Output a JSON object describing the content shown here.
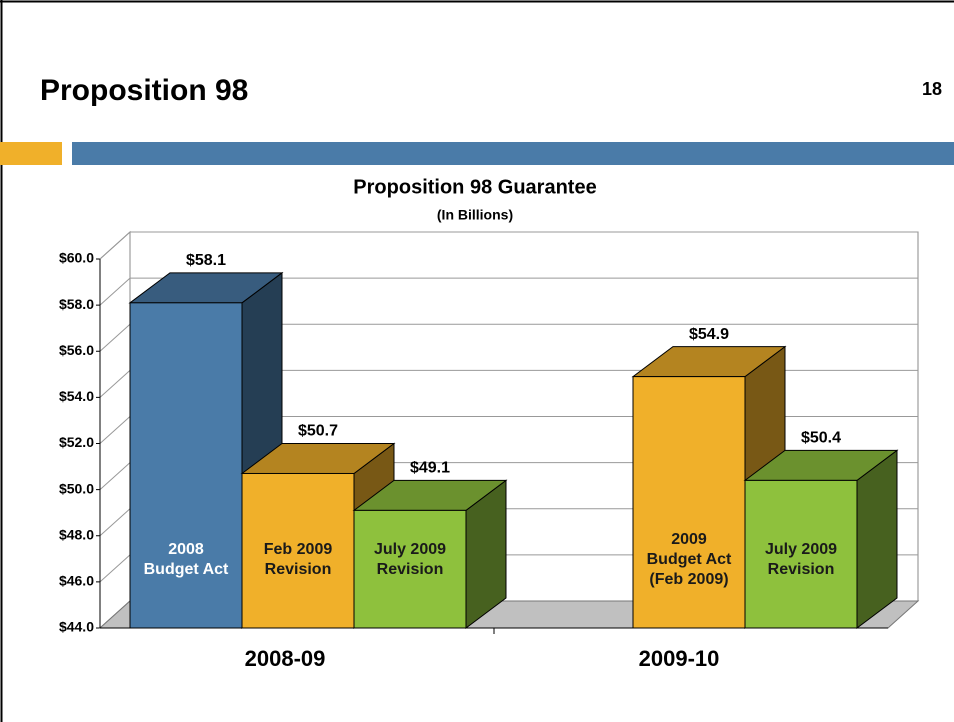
{
  "slide": {
    "title": "Proposition 98",
    "page_number": "18"
  },
  "chart_data": {
    "type": "bar3d",
    "title": "Proposition 98 Guarantee",
    "subtitle": "(In Billions)",
    "ylim": [
      44,
      60
    ],
    "yticks": [
      {
        "value": 44,
        "label": "$44.0"
      },
      {
        "value": 46,
        "label": "$46.0"
      },
      {
        "value": 48,
        "label": "$48.0"
      },
      {
        "value": 50,
        "label": "$50.0"
      },
      {
        "value": 52,
        "label": "$52.0"
      },
      {
        "value": 54,
        "label": "$54.0"
      },
      {
        "value": 56,
        "label": "$56.0"
      },
      {
        "value": 58,
        "label": "$58.0"
      },
      {
        "value": 60,
        "label": "$60.0"
      }
    ],
    "grid": true,
    "groups": [
      {
        "name": "2008-09",
        "bars": [
          {
            "label": [
              "2008",
              "Budget Act"
            ],
            "value": 58.1,
            "value_label": "$58.1",
            "color": "#4a7ba8"
          },
          {
            "label": [
              "Feb 2009",
              "Revision"
            ],
            "value": 50.7,
            "value_label": "$50.7",
            "color": "#f0b02a"
          },
          {
            "label": [
              "July 2009",
              "Revision"
            ],
            "value": 49.1,
            "value_label": "$49.1",
            "color": "#8ec13d"
          }
        ]
      },
      {
        "name": "2009-10",
        "bars": [
          {
            "label": [
              "2009",
              "Budget Act",
              "(Feb 2009)"
            ],
            "value": 54.9,
            "value_label": "$54.9",
            "color": "#f0b02a"
          },
          {
            "label": [
              "July 2009",
              "Revision"
            ],
            "value": 50.4,
            "value_label": "$50.4",
            "color": "#8ec13d"
          }
        ]
      }
    ]
  }
}
